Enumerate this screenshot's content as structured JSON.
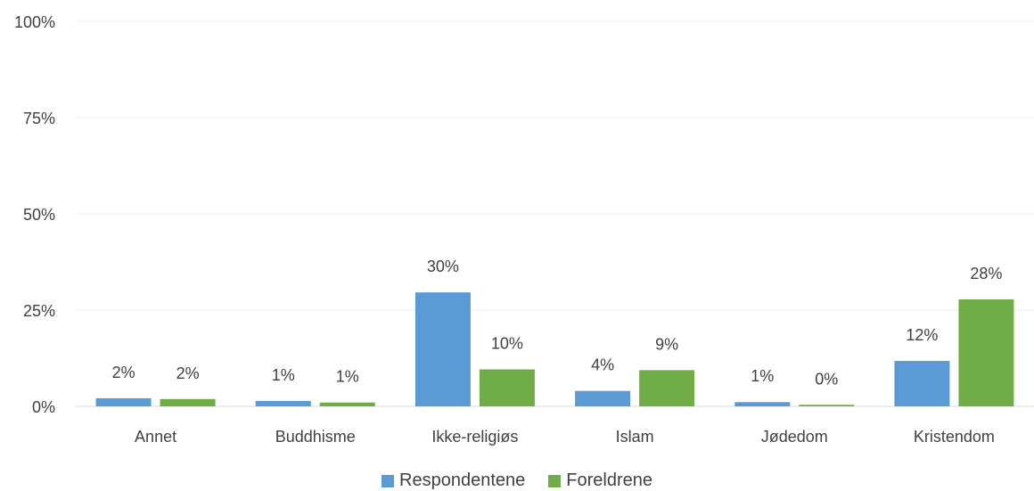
{
  "chart_data": {
    "type": "bar",
    "title": "",
    "xlabel": "",
    "ylabel": "",
    "ylim": [
      0,
      100
    ],
    "yticks": [
      "0%",
      "25%",
      "50%",
      "75%",
      "100%"
    ],
    "grid": true,
    "legend_position": "bottom",
    "categories": [
      "Annet",
      "Buddhisme",
      "Ikke-religiøs",
      "Islam",
      "Jødedom",
      "Kristendom"
    ],
    "series": [
      {
        "name": "Respondentene",
        "color": "#5B9BD5",
        "values": [
          2,
          1,
          30,
          4,
          1,
          12
        ],
        "labels": [
          "2%",
          "1%",
          "30%",
          "4%",
          "1%",
          "12%"
        ],
        "drawn_values": [
          2.1,
          1.4,
          29.6,
          4.0,
          1.1,
          11.8
        ]
      },
      {
        "name": "Foreldrene",
        "color": "#70AD47",
        "values": [
          2,
          1,
          10,
          9,
          0,
          28
        ],
        "labels": [
          "2%",
          "1%",
          "10%",
          "9%",
          "0%",
          "28%"
        ],
        "drawn_values": [
          1.9,
          1.0,
          9.6,
          9.4,
          0.4,
          27.8
        ]
      }
    ]
  }
}
